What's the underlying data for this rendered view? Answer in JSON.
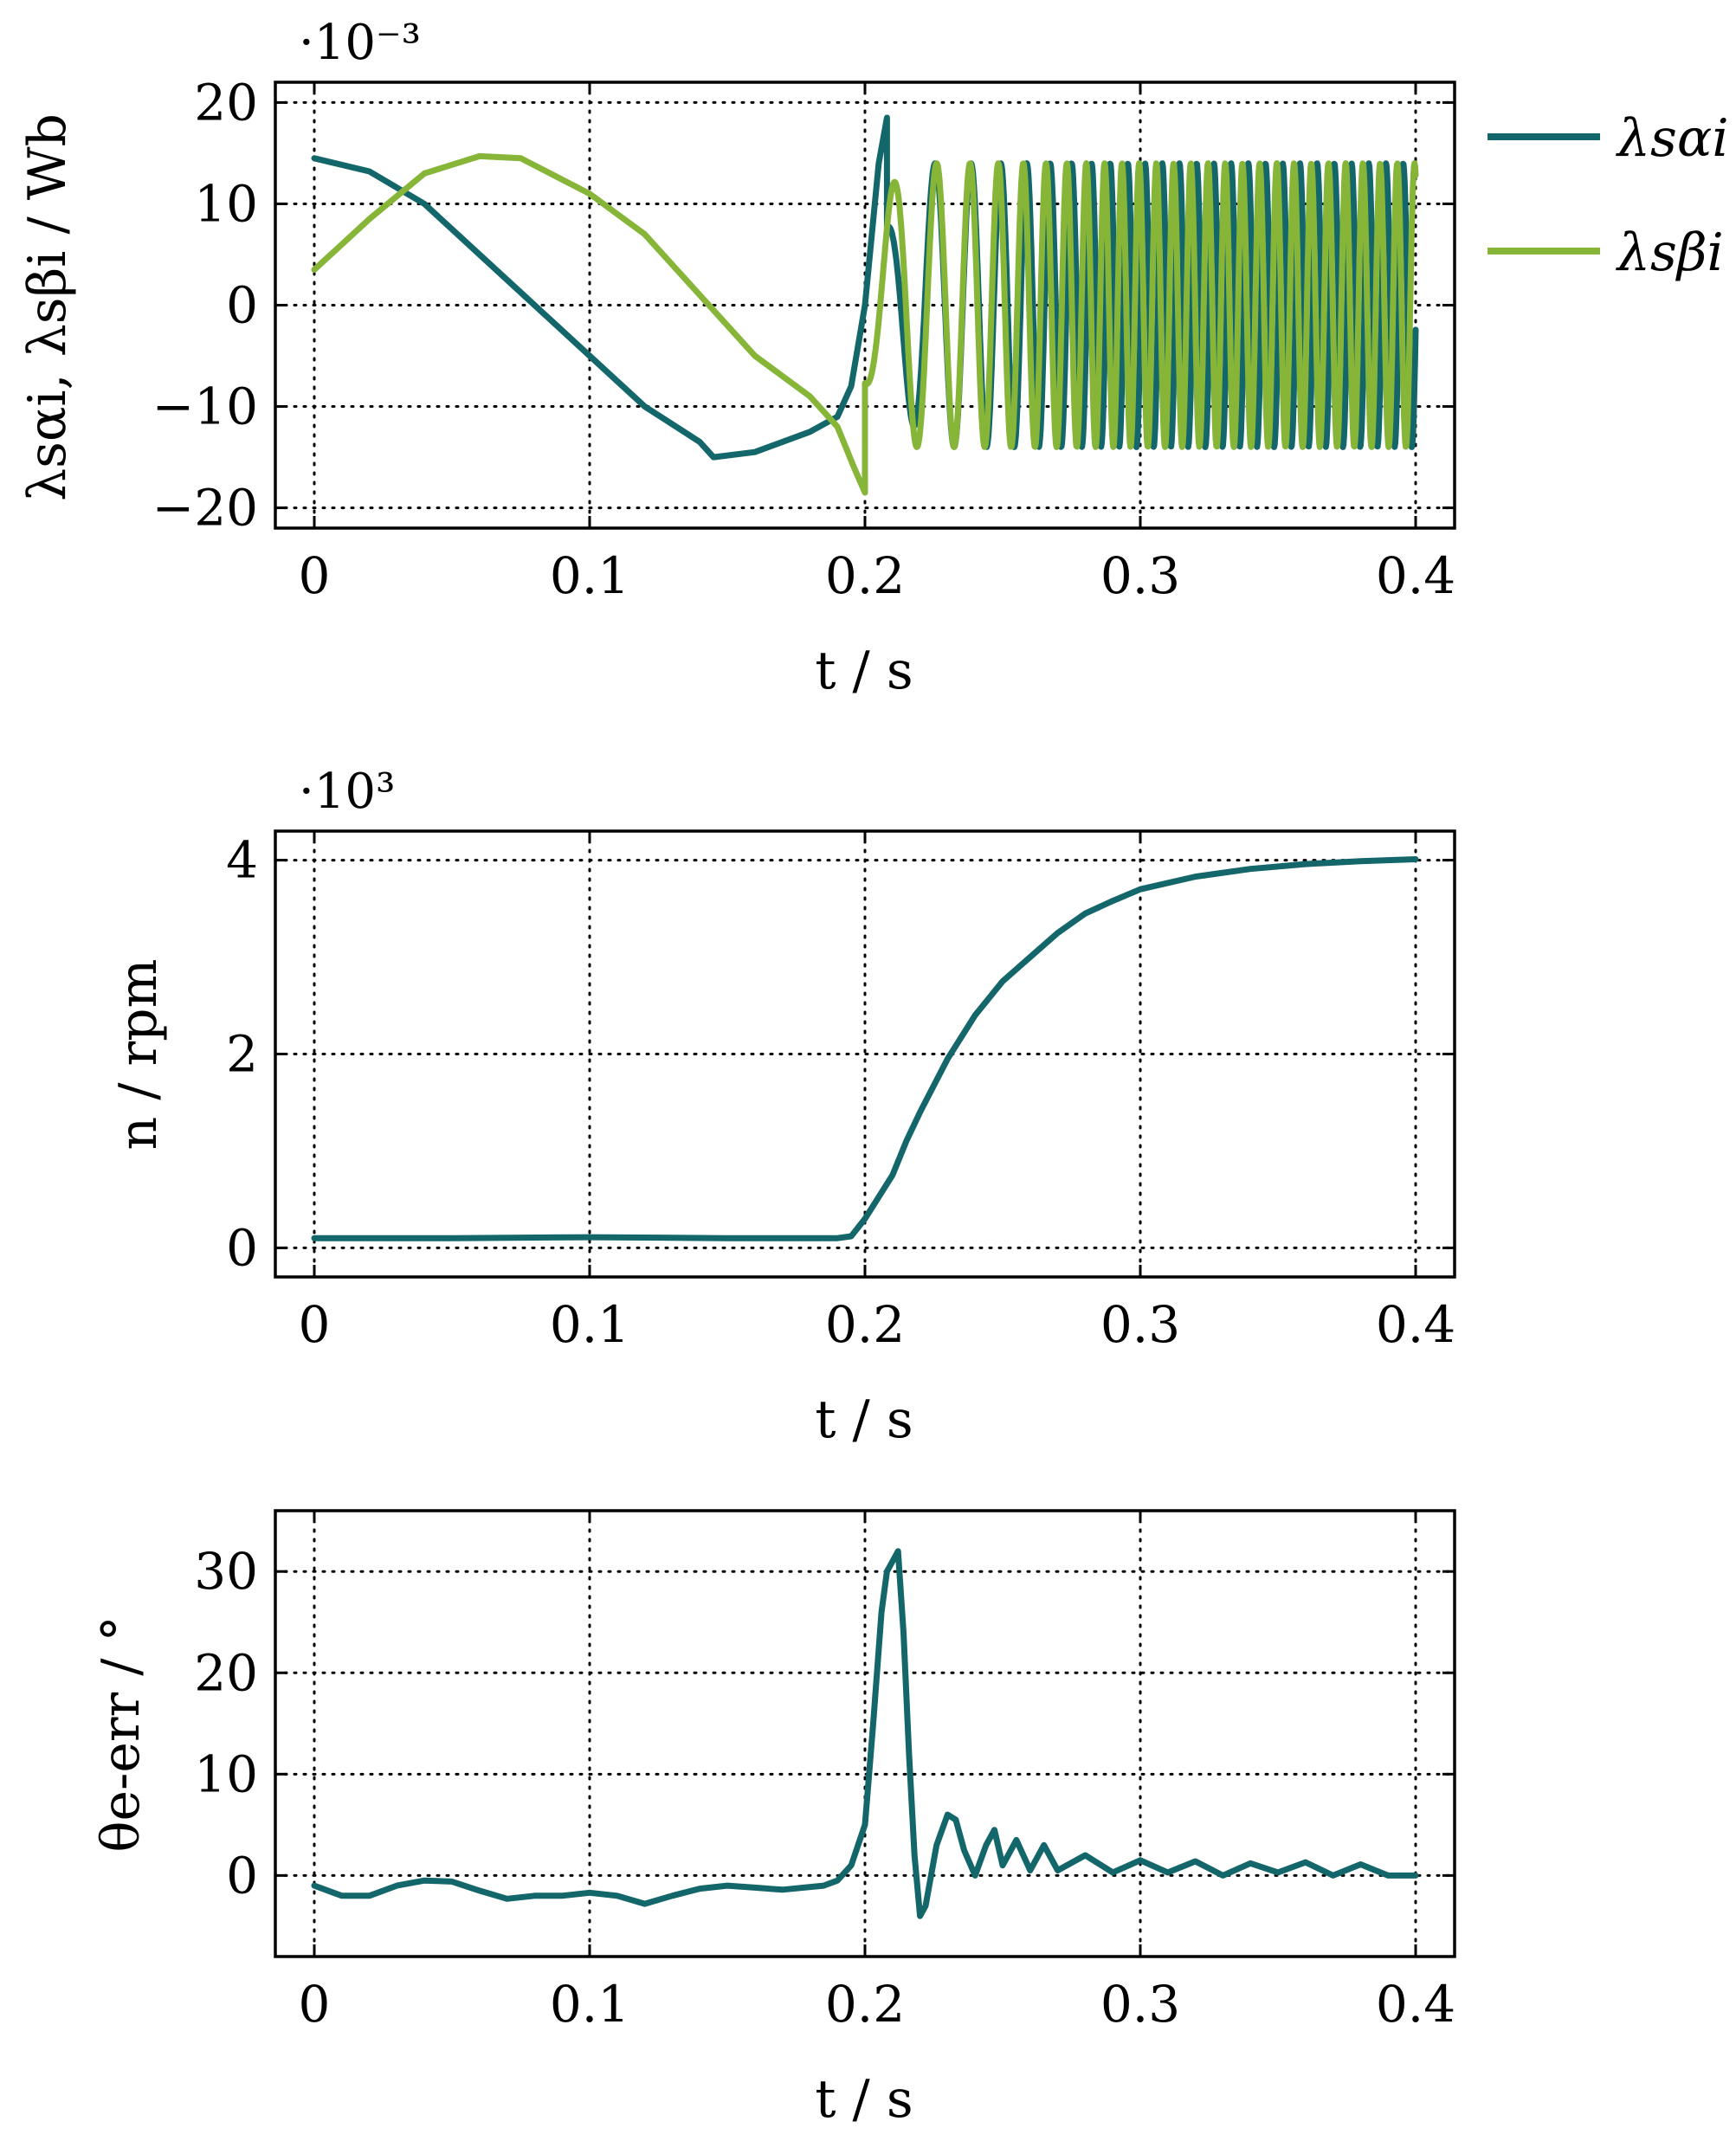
{
  "colors": {
    "series_alpha": "#13666a",
    "series_beta": "#86b538",
    "speed": "#13666a",
    "error": "#13666a"
  },
  "chart_data": [
    {
      "type": "line",
      "multiplier_label": "·10⁻³",
      "xlabel": "t / s",
      "ylabel": "λsαi, λsβi / Wb",
      "xlim": [
        0,
        0.4
      ],
      "ylim": [
        -22,
        22
      ],
      "xticks": [
        "0",
        "0.1",
        "0.2",
        "0.3",
        "0.4"
      ],
      "yticks": [
        "−20",
        "−10",
        "0",
        "10",
        "20"
      ],
      "grid": true,
      "legend": "outside-right",
      "series": [
        {
          "name": "λsαi",
          "color_key": "series_alpha",
          "points": [
            [
              0,
              14.5
            ],
            [
              0.02,
              13.2
            ],
            [
              0.04,
              10
            ],
            [
              0.06,
              5
            ],
            [
              0.08,
              0
            ],
            [
              0.1,
              -5
            ],
            [
              0.12,
              -10
            ],
            [
              0.14,
              -13.5
            ],
            [
              0.145,
              -15
            ],
            [
              0.16,
              -14.5
            ],
            [
              0.18,
              -12.5
            ],
            [
              0.19,
              -11
            ],
            [
              0.195,
              -8
            ],
            [
              0.2,
              0
            ],
            [
              0.205,
              14
            ],
            [
              0.208,
              18.5
            ]
          ],
          "oscillation": {
            "start": 0.208,
            "end": 0.4,
            "amplitude": 14,
            "f_start": 45,
            "f_end": 160,
            "phase_deg": 90
          }
        },
        {
          "name": "λsβi",
          "color_key": "series_beta",
          "points": [
            [
              0,
              3.5
            ],
            [
              0.02,
              8.5
            ],
            [
              0.04,
              13
            ],
            [
              0.06,
              14.7
            ],
            [
              0.075,
              14.5
            ],
            [
              0.1,
              11
            ],
            [
              0.12,
              7
            ],
            [
              0.14,
              1
            ],
            [
              0.16,
              -5
            ],
            [
              0.18,
              -9
            ],
            [
              0.19,
              -12
            ],
            [
              0.196,
              -16
            ],
            [
              0.2,
              -18.5
            ]
          ],
          "oscillation": {
            "start": 0.2,
            "end": 0.4,
            "amplitude": 14,
            "f_start": 40,
            "f_end": 160,
            "phase_deg": -90
          }
        }
      ]
    },
    {
      "type": "line",
      "multiplier_label": "·10³",
      "xlabel": "t / s",
      "ylabel": "n / rpm",
      "xlim": [
        0,
        0.4
      ],
      "ylim": [
        -0.3,
        4.3
      ],
      "xticks": [
        "0",
        "0.1",
        "0.2",
        "0.3",
        "0.4"
      ],
      "yticks": [
        "0",
        "2",
        "4"
      ],
      "grid": true,
      "series": [
        {
          "color_key": "speed",
          "points": [
            [
              0,
              0.1
            ],
            [
              0.05,
              0.1
            ],
            [
              0.1,
              0.11
            ],
            [
              0.15,
              0.1
            ],
            [
              0.19,
              0.1
            ],
            [
              0.195,
              0.12
            ],
            [
              0.2,
              0.3
            ],
            [
              0.21,
              0.75
            ],
            [
              0.215,
              1.1
            ],
            [
              0.22,
              1.4
            ],
            [
              0.23,
              1.95
            ],
            [
              0.24,
              2.4
            ],
            [
              0.25,
              2.75
            ],
            [
              0.26,
              3.0
            ],
            [
              0.27,
              3.25
            ],
            [
              0.28,
              3.45
            ],
            [
              0.29,
              3.58
            ],
            [
              0.3,
              3.7
            ],
            [
              0.32,
              3.83
            ],
            [
              0.34,
              3.91
            ],
            [
              0.36,
              3.96
            ],
            [
              0.38,
              3.99
            ],
            [
              0.4,
              4.01
            ]
          ]
        }
      ]
    },
    {
      "type": "line",
      "xlabel": "t / s",
      "ylabel": "θe-err / °",
      "xlim": [
        0,
        0.4
      ],
      "ylim": [
        -8,
        36
      ],
      "xticks": [
        "0",
        "0.1",
        "0.2",
        "0.3",
        "0.4"
      ],
      "yticks": [
        "0",
        "10",
        "20",
        "30"
      ],
      "grid": true,
      "series": [
        {
          "color_key": "error",
          "points": [
            [
              0,
              -1
            ],
            [
              0.01,
              -2
            ],
            [
              0.02,
              -2
            ],
            [
              0.03,
              -1
            ],
            [
              0.04,
              -0.5
            ],
            [
              0.05,
              -0.6
            ],
            [
              0.06,
              -1.5
            ],
            [
              0.07,
              -2.3
            ],
            [
              0.08,
              -2
            ],
            [
              0.09,
              -2
            ],
            [
              0.1,
              -1.7
            ],
            [
              0.11,
              -2
            ],
            [
              0.12,
              -2.8
            ],
            [
              0.13,
              -2
            ],
            [
              0.14,
              -1.3
            ],
            [
              0.15,
              -1
            ],
            [
              0.16,
              -1.2
            ],
            [
              0.17,
              -1.4
            ],
            [
              0.185,
              -1
            ],
            [
              0.19,
              -0.5
            ],
            [
              0.195,
              1
            ],
            [
              0.2,
              5
            ],
            [
              0.203,
              15
            ],
            [
              0.206,
              26
            ],
            [
              0.208,
              30
            ],
            [
              0.21,
              31
            ],
            [
              0.212,
              32
            ],
            [
              0.214,
              24
            ],
            [
              0.216,
              12
            ],
            [
              0.218,
              2
            ],
            [
              0.22,
              -4
            ],
            [
              0.222,
              -3
            ],
            [
              0.226,
              3
            ],
            [
              0.23,
              6
            ],
            [
              0.233,
              5.5
            ],
            [
              0.236,
              2.5
            ],
            [
              0.24,
              0
            ],
            [
              0.244,
              3
            ],
            [
              0.247,
              4.5
            ],
            [
              0.25,
              1
            ],
            [
              0.255,
              3.5
            ],
            [
              0.26,
              0.5
            ],
            [
              0.265,
              3
            ],
            [
              0.27,
              0.5
            ],
            [
              0.28,
              2
            ],
            [
              0.29,
              0.3
            ],
            [
              0.3,
              1.5
            ],
            [
              0.31,
              0.3
            ],
            [
              0.32,
              1.4
            ],
            [
              0.33,
              0
            ],
            [
              0.34,
              1.2
            ],
            [
              0.35,
              0.3
            ],
            [
              0.36,
              1.3
            ],
            [
              0.37,
              0
            ],
            [
              0.38,
              1.1
            ],
            [
              0.39,
              0
            ],
            [
              0.4,
              0
            ]
          ]
        }
      ]
    }
  ]
}
